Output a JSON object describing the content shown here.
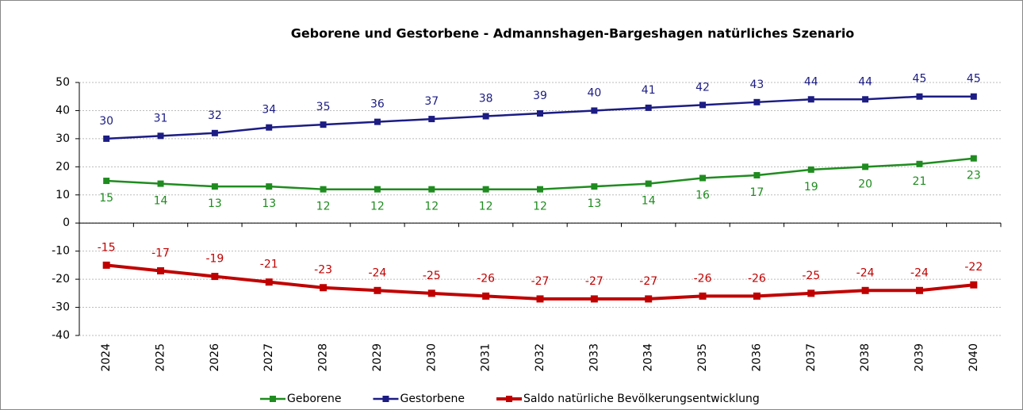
{
  "chart_data": {
    "type": "line",
    "title": "Geborene und Gestorbene - Admannshagen-Bargeshagen natürliches Szenario",
    "categories": [
      "2024",
      "2025",
      "2026",
      "2027",
      "2028",
      "2029",
      "2030",
      "2031",
      "2032",
      "2033",
      "2034",
      "2035",
      "2036",
      "2037",
      "2038",
      "2039",
      "2040"
    ],
    "series": [
      {
        "name": "Geborene",
        "color": "#1f8c1f",
        "values": [
          15,
          14,
          13,
          13,
          12,
          12,
          12,
          12,
          12,
          13,
          14,
          16,
          17,
          19,
          20,
          21,
          23
        ]
      },
      {
        "name": "Gestorbene",
        "color": "#1c1c84",
        "values": [
          30,
          31,
          32,
          34,
          35,
          36,
          37,
          38,
          39,
          40,
          41,
          42,
          43,
          44,
          44,
          45,
          45
        ]
      },
      {
        "name": "Saldo natürliche Bevölkerungsentwicklung",
        "color": "#c00000",
        "values": [
          -15,
          -17,
          -19,
          -21,
          -23,
          -24,
          -25,
          -26,
          -27,
          -27,
          -27,
          -26,
          -26,
          -25,
          -24,
          -24,
          -22
        ]
      }
    ],
    "ylim": [
      -40,
      50
    ],
    "yticks": [
      -40,
      -30,
      -20,
      -10,
      0,
      10,
      20,
      30,
      40,
      50
    ],
    "grid": true,
    "legend": "bottom"
  }
}
